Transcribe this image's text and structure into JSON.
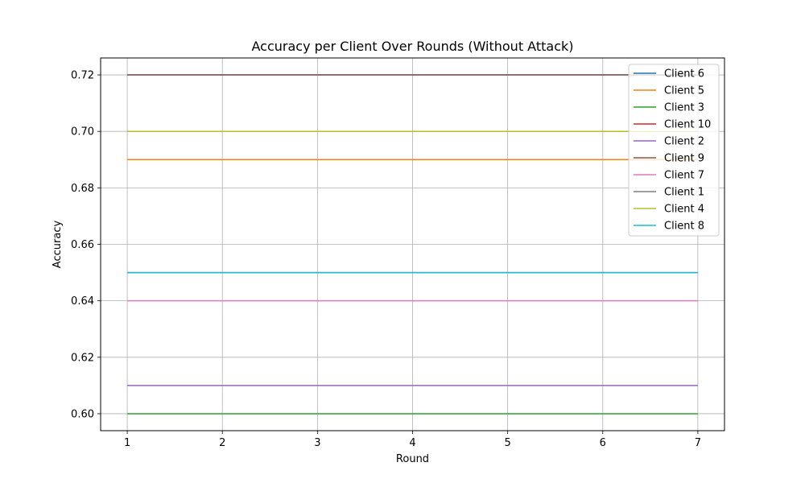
{
  "chart_data": {
    "type": "line",
    "title": "Accuracy per Client Over Rounds (Without Attack)",
    "xlabel": "Round",
    "ylabel": "Accuracy",
    "x": [
      1,
      2,
      3,
      4,
      5,
      6,
      7
    ],
    "xlim": [
      0.72,
      7.28
    ],
    "ylim": [
      0.594,
      0.726
    ],
    "xticks": [
      1,
      2,
      3,
      4,
      5,
      6,
      7
    ],
    "yticks": [
      "0.60",
      "0.62",
      "0.64",
      "0.66",
      "0.68",
      "0.70",
      "0.72"
    ],
    "grid": true,
    "legend_position": "top-right",
    "series": [
      {
        "name": "Client 6",
        "color": "#1f77b4",
        "values": [
          0.72,
          0.72,
          0.72,
          0.72,
          0.72,
          0.72,
          0.72
        ]
      },
      {
        "name": "Client 5",
        "color": "#ff7f0e",
        "values": [
          0.69,
          0.69,
          0.69,
          0.69,
          0.69,
          0.69,
          0.69
        ]
      },
      {
        "name": "Client 3",
        "color": "#2ca02c",
        "values": [
          0.6,
          0.6,
          0.6,
          0.6,
          0.6,
          0.6,
          0.6
        ]
      },
      {
        "name": "Client 10",
        "color": "#d62728",
        "values": [
          0.7,
          0.7,
          0.7,
          0.7,
          0.7,
          0.7,
          0.7
        ]
      },
      {
        "name": "Client 2",
        "color": "#9467bd",
        "values": [
          0.61,
          0.61,
          0.61,
          0.61,
          0.61,
          0.61,
          0.61
        ]
      },
      {
        "name": "Client 9",
        "color": "#8c564b",
        "values": [
          0.72,
          0.72,
          0.72,
          0.72,
          0.72,
          0.72,
          0.72
        ]
      },
      {
        "name": "Client 7",
        "color": "#e377c2",
        "values": [
          0.64,
          0.64,
          0.64,
          0.64,
          0.64,
          0.64,
          0.64
        ]
      },
      {
        "name": "Client 1",
        "color": "#7f7f7f",
        "values": [
          0.65,
          0.65,
          0.65,
          0.65,
          0.65,
          0.65,
          0.65
        ]
      },
      {
        "name": "Client 4",
        "color": "#bcbd22",
        "values": [
          0.7,
          0.7,
          0.7,
          0.7,
          0.7,
          0.7,
          0.7
        ]
      },
      {
        "name": "Client 8",
        "color": "#17becf",
        "values": [
          0.65,
          0.65,
          0.65,
          0.65,
          0.65,
          0.65,
          0.65
        ]
      }
    ]
  }
}
